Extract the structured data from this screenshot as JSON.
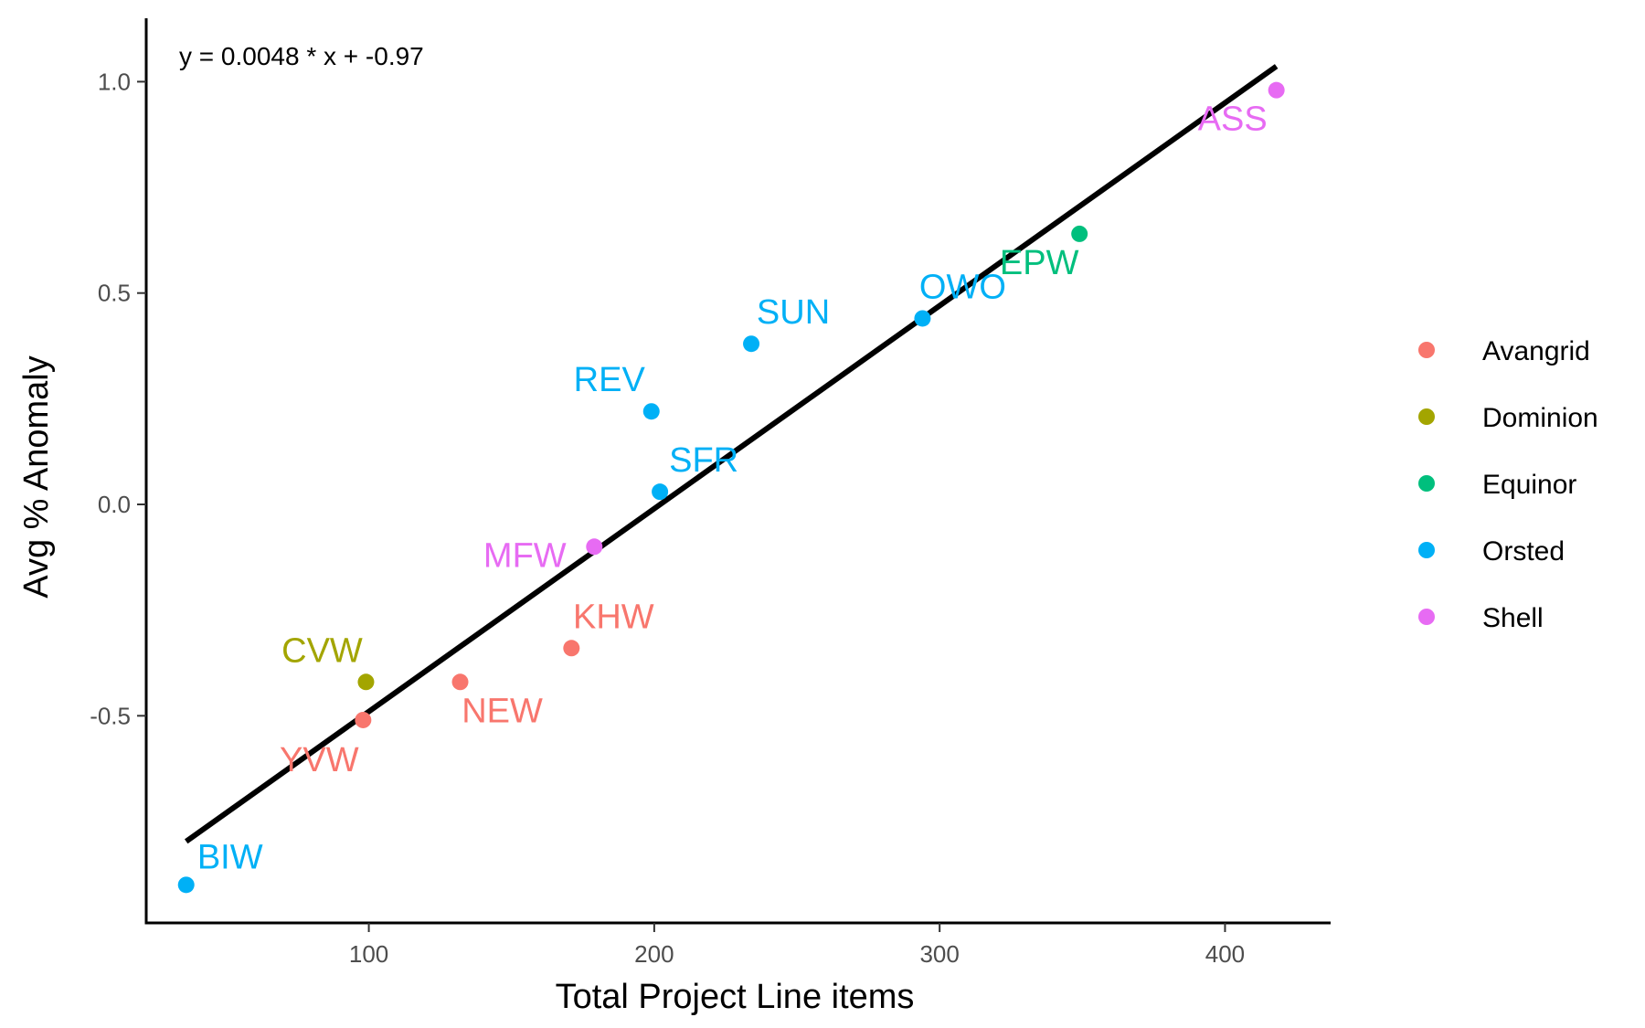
{
  "chart_data": {
    "type": "scatter",
    "xlabel": "Total Project Line items",
    "ylabel": "Avg % Anomaly",
    "xlim": [
      22,
      437
    ],
    "ylim": [
      -0.99,
      1.15
    ],
    "xticks": [
      100,
      200,
      300,
      400
    ],
    "yticks": [
      -0.5,
      0.0,
      0.5,
      1.0
    ],
    "xtick_labels": [
      "100",
      "200",
      "300",
      "400"
    ],
    "ytick_labels": [
      "-0.5",
      "0.0",
      "0.5",
      "1.0"
    ],
    "grid": false,
    "legend_position": "right",
    "annotation": "y = 0.0048 * x + -0.97",
    "trendline": {
      "slope": 0.0048,
      "intercept": -0.97,
      "x_range": [
        36,
        418
      ]
    },
    "series": [
      {
        "name": "Avangrid",
        "color": "#F8766D",
        "points": [
          {
            "label": "YVW",
            "x": 98,
            "y": -0.51
          },
          {
            "label": "NEW",
            "x": 132,
            "y": -0.42
          },
          {
            "label": "KHW",
            "x": 171,
            "y": -0.34
          }
        ]
      },
      {
        "name": "Dominion",
        "color": "#A3A500",
        "points": [
          {
            "label": "CVW",
            "x": 99,
            "y": -0.42
          }
        ]
      },
      {
        "name": "Equinor",
        "color": "#00BF7D",
        "points": [
          {
            "label": "EPW",
            "x": 349,
            "y": 0.64
          }
        ]
      },
      {
        "name": "Orsted",
        "color": "#00B0F6",
        "points": [
          {
            "label": "BIW",
            "x": 36,
            "y": -0.9
          },
          {
            "label": "REV",
            "x": 199,
            "y": 0.22
          },
          {
            "label": "SFR",
            "x": 202,
            "y": 0.03
          },
          {
            "label": "SUN",
            "x": 234,
            "y": 0.38
          },
          {
            "label": "OWO",
            "x": 294,
            "y": 0.44
          }
        ]
      },
      {
        "name": "Shell",
        "color": "#E76BF3",
        "points": [
          {
            "label": "MFW",
            "x": 179,
            "y": -0.1
          },
          {
            "label": "ASS",
            "x": 418,
            "y": 0.98
          }
        ]
      }
    ]
  }
}
